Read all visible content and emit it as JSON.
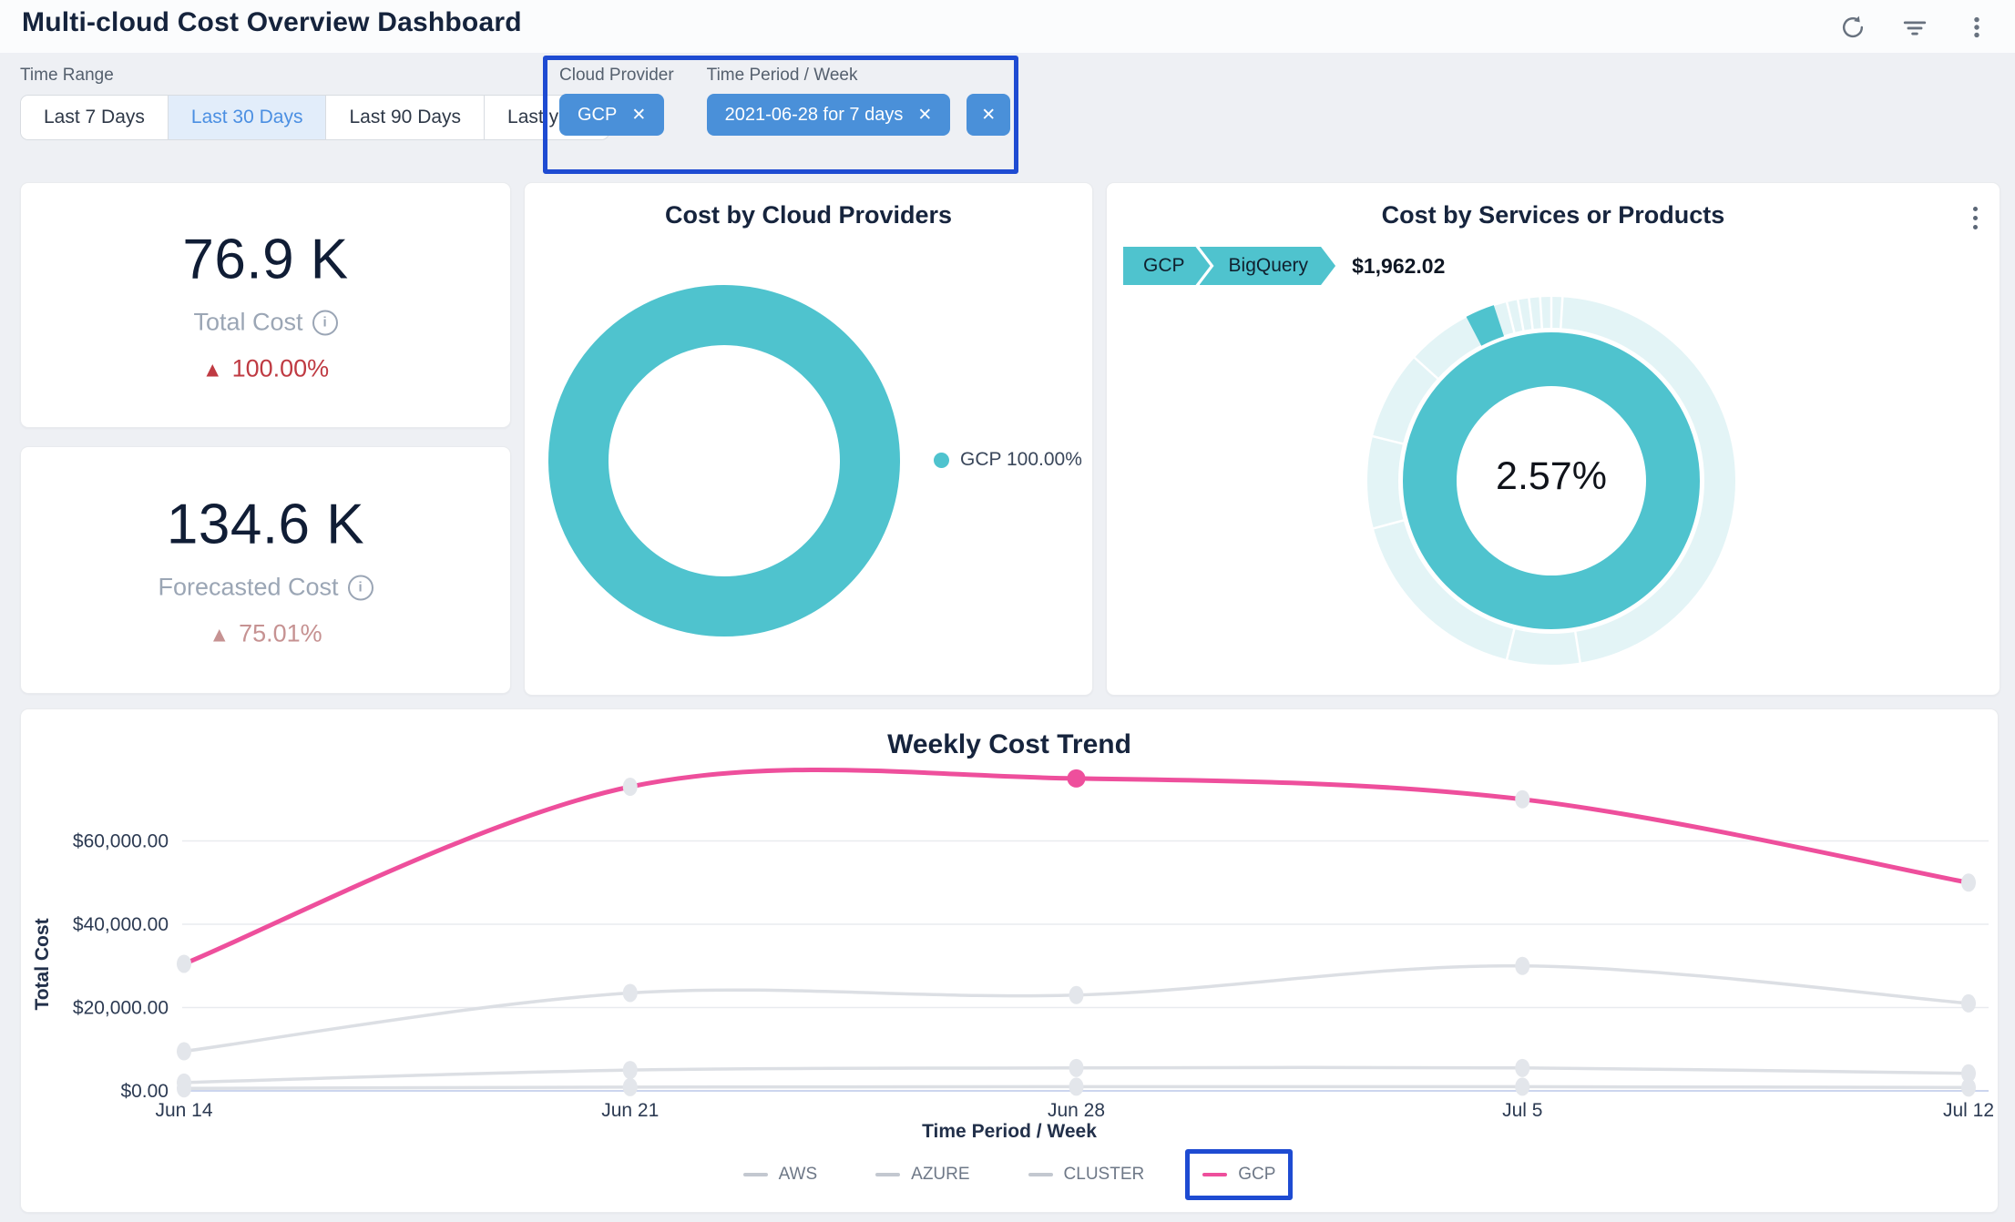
{
  "header": {
    "title": "Multi-cloud Cost Overview Dashboard"
  },
  "icons": {
    "close": "✕"
  },
  "colors": {
    "accent_blue": "#4a90d9",
    "annotation_blue": "#1e4bd2",
    "teal": "#4fc3ce",
    "teal_muted": "#e3f4f6",
    "pink": "#ee4f9c",
    "red_up": "#bf3a42",
    "rose_up": "#c69292"
  },
  "time_range": {
    "label": "Time Range",
    "options": [
      "Last 7 Days",
      "Last 30 Days",
      "Last 90 Days",
      "Last year"
    ],
    "selected": "Last 30 Days"
  },
  "filter_chips": {
    "cloud_provider": {
      "label": "Cloud Provider",
      "value": "GCP"
    },
    "time_period": {
      "label": "Time Period / Week",
      "value": "2021-06-28 for 7 days"
    }
  },
  "kpis": [
    {
      "value": "76.9 K",
      "label": "Total Cost",
      "delta": "100.00%",
      "delta_direction": "up",
      "delta_color": "#bf3a42"
    },
    {
      "value": "134.6 K",
      "label": "Forecasted Cost",
      "delta": "75.01%",
      "delta_direction": "up",
      "delta_color": "#c69292"
    }
  ],
  "chart_data": [
    {
      "id": "cost-by-cloud-providers",
      "type": "pie",
      "title": "Cost by Cloud Providers",
      "series": [
        {
          "name": "GCP",
          "percent": 100.0,
          "color": "#4fc3ce"
        }
      ],
      "legend_label": "GCP 100.00%",
      "legend_position": "right",
      "donut": true
    },
    {
      "id": "cost-by-services-or-products",
      "type": "pie",
      "title": "Cost by Services or Products",
      "subtype": "sunburst",
      "breadcrumb": [
        "GCP",
        "BigQuery"
      ],
      "breadcrumb_value": "$1,962.02",
      "center_label": "2.57%",
      "inner_series": [
        {
          "name": "GCP",
          "percent": 100.0,
          "color": "#4fc3ce"
        }
      ],
      "outer_highlight": {
        "name": "BigQuery",
        "percent": 2.57,
        "start_angle_deg": -27.4,
        "color": "#4fc3ce"
      },
      "outer_ring_color": "#e3f4f6",
      "separator_angles_deg": [
        3.5,
        0,
        -3.5,
        -7,
        -10.5,
        -14,
        -48,
        -76,
        -105,
        -166,
        171
      ]
    },
    {
      "id": "weekly-cost-trend",
      "type": "line",
      "title": "Weekly Cost Trend",
      "xlabel": "Time Period / Week",
      "ylabel": "Total Cost",
      "x": [
        "Jun 14",
        "Jun 21",
        "Jun 28",
        "Jul 5",
        "Jul 12"
      ],
      "ytick_labels": [
        "$0.00",
        "$20,000.00",
        "$40,000.00",
        "$60,000.00"
      ],
      "ytick_values": [
        0,
        20000,
        40000,
        60000
      ],
      "ylim": [
        0,
        82000
      ],
      "grid": true,
      "legend_position": "bottom",
      "series": [
        {
          "name": "AWS",
          "color": "#dcdfe4",
          "values": [
            600,
            900,
            1000,
            1000,
            800
          ]
        },
        {
          "name": "AZURE",
          "color": "#dcdfe4",
          "values": [
            2000,
            5000,
            5500,
            5500,
            4200
          ]
        },
        {
          "name": "CLUSTER",
          "color": "#dcdfe4",
          "values": [
            9500,
            23500,
            23000,
            30000,
            21000
          ]
        },
        {
          "name": "GCP",
          "color": "#ee4f9c",
          "values": [
            30500,
            73000,
            75000,
            70000,
            50000
          ],
          "highlight_index": 2,
          "annotated": true
        }
      ]
    }
  ]
}
